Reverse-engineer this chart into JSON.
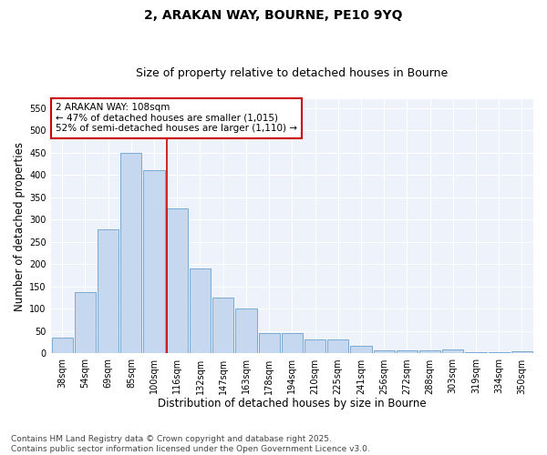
{
  "title_line1": "2, ARAKAN WAY, BOURNE, PE10 9YQ",
  "title_line2": "Size of property relative to detached houses in Bourne",
  "xlabel": "Distribution of detached houses by size in Bourne",
  "ylabel": "Number of detached properties",
  "categories": [
    "38sqm",
    "54sqm",
    "69sqm",
    "85sqm",
    "100sqm",
    "116sqm",
    "132sqm",
    "147sqm",
    "163sqm",
    "178sqm",
    "194sqm",
    "210sqm",
    "225sqm",
    "241sqm",
    "256sqm",
    "272sqm",
    "288sqm",
    "303sqm",
    "319sqm",
    "334sqm",
    "350sqm"
  ],
  "values": [
    35,
    137,
    278,
    450,
    410,
    325,
    191,
    126,
    100,
    46,
    46,
    31,
    31,
    18,
    8,
    8,
    8,
    10,
    3,
    3,
    6
  ],
  "bar_color": "#c5d8f0",
  "bar_edge_color": "#7aaad0",
  "vline_x_index": 5,
  "vline_color": "#cc0000",
  "annotation_text": "2 ARAKAN WAY: 108sqm\n← 47% of detached houses are smaller (1,015)\n52% of semi-detached houses are larger (1,110) →",
  "annotation_box_color": "#ffffff",
  "annotation_box_edge_color": "#cc0000",
  "ylim": [
    0,
    570
  ],
  "yticks": [
    0,
    50,
    100,
    150,
    200,
    250,
    300,
    350,
    400,
    450,
    500,
    550
  ],
  "bg_color": "#eef2fb",
  "footer_line1": "Contains HM Land Registry data © Crown copyright and database right 2025.",
  "footer_line2": "Contains public sector information licensed under the Open Government Licence v3.0.",
  "title_fontsize": 10,
  "subtitle_fontsize": 9,
  "axis_label_fontsize": 8.5,
  "tick_fontsize": 7,
  "annotation_fontsize": 7.5,
  "footer_fontsize": 6.5
}
